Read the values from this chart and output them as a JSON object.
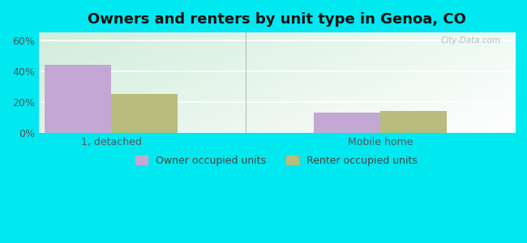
{
  "title": "Owners and renters by unit type in Genoa, CO",
  "categories": [
    "1, detached",
    "Mobile home"
  ],
  "owner_values": [
    44.0,
    13.0
  ],
  "renter_values": [
    25.0,
    14.0
  ],
  "owner_color": "#c4a8d4",
  "renter_color": "#b8bc7c",
  "yticks": [
    0,
    20,
    40,
    60
  ],
  "ylim": [
    0,
    65
  ],
  "bar_width": 0.32,
  "group_positions": [
    0.35,
    1.65
  ],
  "background_outer": "#00e8f0",
  "legend_owner": "Owner occupied units",
  "legend_renter": "Renter occupied units",
  "watermark": "City-Data.com",
  "title_fontsize": 13,
  "axis_label_fontsize": 9,
  "legend_fontsize": 9,
  "xlim": [
    0,
    2.3
  ]
}
